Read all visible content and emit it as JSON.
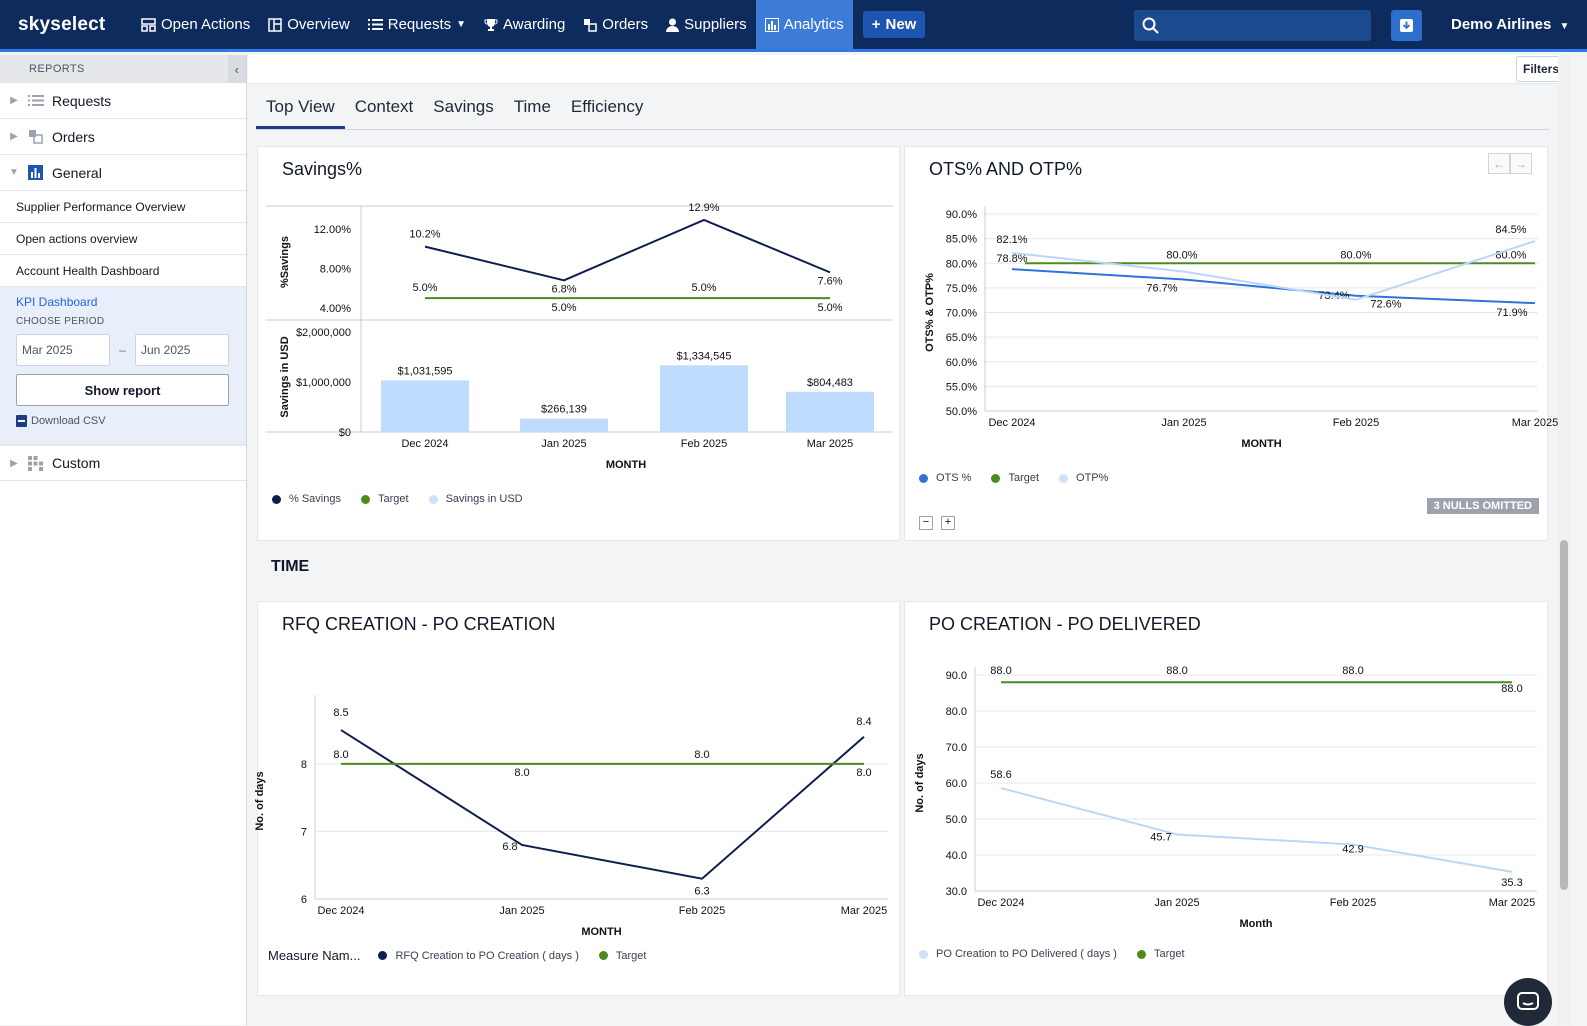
{
  "app": {
    "logo": "skyselect"
  },
  "nav": {
    "items": [
      {
        "label": "Open Actions",
        "icon": "inbox-icon"
      },
      {
        "label": "Overview",
        "icon": "dashboard-icon"
      },
      {
        "label": "Requests",
        "icon": "list-icon"
      },
      {
        "label": "Awarding",
        "icon": "trophy-icon"
      },
      {
        "label": "Orders",
        "icon": "orders-icon"
      },
      {
        "label": "Suppliers",
        "icon": "person-icon"
      },
      {
        "label": "Analytics",
        "icon": "bar-chart-icon"
      }
    ],
    "new_label": "New",
    "search_value": "",
    "account": "Demo Airlines"
  },
  "sidebar": {
    "header": "REPORTS",
    "groups": [
      {
        "label": "Requests"
      },
      {
        "label": "Orders"
      },
      {
        "label": "General"
      },
      {
        "label": "Custom"
      }
    ],
    "links": [
      "Supplier Performance Overview",
      "Open actions overview",
      "Account Health Dashboard"
    ],
    "kpi": {
      "title": "KPI Dashboard",
      "choose_label": "CHOOSE PERIOD",
      "from": "Mar 2025",
      "dash": "–",
      "to": "Jun 2025",
      "show_report": "Show report",
      "download_csv": "Download CSV"
    }
  },
  "main": {
    "filters": "Filters",
    "tabs": [
      "Top View",
      "Context",
      "Savings",
      "Time",
      "Efficiency"
    ],
    "time_heading": "TIME",
    "nulls_badge": "3 NULLS OMITTED",
    "zoom_minus": "−",
    "zoom_plus": "+",
    "measure_label": "Measure Nam..."
  },
  "chart_data": [
    {
      "id": "savings",
      "title": "Savings%",
      "type": "bar",
      "categories": [
        "Dec 2024",
        "Jan 2025",
        "Feb 2025",
        "Mar 2025"
      ],
      "xlabel": "MONTH",
      "top_panel": {
        "ylabel": "%Savings",
        "yticks": [
          "12.00%",
          "8.00%",
          "4.00%"
        ],
        "series": [
          {
            "name": "% Savings",
            "values": [
              10.2,
              6.8,
              12.9,
              7.6
            ],
            "labels": [
              "10.2%",
              "6.8%",
              "12.9%",
              "7.6%"
            ],
            "color": "#0f1f4d"
          },
          {
            "name": "Target",
            "values": [
              5.0,
              5.0,
              5.0,
              5.0
            ],
            "labels": [
              "5.0%",
              "5.0%",
              "5.0%",
              "5.0%"
            ],
            "color": "#4d8b1f"
          }
        ]
      },
      "bottom_panel": {
        "ylabel": "Savings in USD",
        "yticks": [
          "$2,000,000",
          "$1,000,000",
          "$0"
        ],
        "series": [
          {
            "name": "Savings in USD",
            "values": [
              1031595,
              266139,
              1334545,
              804483
            ],
            "labels": [
              "$1,031,595",
              "$266,139",
              "$1,334,545",
              "$804,483"
            ],
            "color": "#bfdbfe"
          }
        ]
      },
      "legend": [
        {
          "label": "% Savings",
          "color": "#0f1f4d"
        },
        {
          "label": "Target",
          "color": "#4d8b1f"
        },
        {
          "label": "Savings in USD",
          "color": "#cfe2fb"
        }
      ]
    },
    {
      "id": "ots",
      "title": "OTS% AND OTP%",
      "type": "line",
      "categories": [
        "Dec 2024",
        "Jan 2025",
        "Feb 2025",
        "Mar 2025"
      ],
      "xlabel": "MONTH",
      "ylabel": "OTS% & OTP%",
      "yticks": [
        "90.0%",
        "85.0%",
        "80.0%",
        "75.0%",
        "70.0%",
        "65.0%",
        "60.0%",
        "55.0%",
        "50.0%"
      ],
      "ylim": [
        50,
        90
      ],
      "series": [
        {
          "name": "OTS %",
          "values": [
            78.8,
            76.7,
            73.4,
            71.9
          ],
          "labels": [
            "78.8%",
            "76.7%",
            "73.4%",
            "71.9%"
          ],
          "color": "#2f73d9"
        },
        {
          "name": "Target",
          "values": [
            80.0,
            80.0,
            80.0,
            80.0
          ],
          "labels": [
            "",
            "80.0%",
            "80.0%",
            "80.0%"
          ],
          "color": "#4d8b1f"
        },
        {
          "name": "OTP%",
          "values": [
            82.1,
            78.3,
            72.6,
            84.5
          ],
          "labels": [
            "82.1%",
            "",
            "72.6%",
            "84.5%"
          ],
          "color": "#bcd7f5"
        }
      ],
      "legend": [
        {
          "label": "OTS %",
          "color": "#2f73d9"
        },
        {
          "label": "Target",
          "color": "#4d8b1f"
        },
        {
          "label": "OTP%",
          "color": "#cfe2fb"
        }
      ]
    },
    {
      "id": "rfq",
      "title": "RFQ CREATION - PO CREATION",
      "type": "line",
      "categories": [
        "Dec 2024",
        "Jan 2025",
        "Feb 2025",
        "Mar 2025"
      ],
      "xlabel": "MONTH",
      "ylabel": "No. of days",
      "yticks": [
        "8",
        "7",
        "6"
      ],
      "ylim": [
        6,
        8.9
      ],
      "series": [
        {
          "name": "RFQ Creation to PO Creation ( days )",
          "values": [
            8.5,
            6.8,
            6.3,
            8.4
          ],
          "labels": [
            "8.5",
            "6.8",
            "6.3",
            "8.4"
          ],
          "color": "#0f1f4d"
        },
        {
          "name": "Target",
          "values": [
            8.0,
            8.0,
            8.0,
            8.0
          ],
          "labels": [
            "8.0",
            "8.0",
            "8.0",
            "8.0"
          ],
          "color": "#4d8b1f"
        }
      ],
      "legend": [
        {
          "label": "RFQ Creation to PO Creation ( days )",
          "color": "#0f1f4d"
        },
        {
          "label": "Target",
          "color": "#4d8b1f"
        }
      ]
    },
    {
      "id": "podel",
      "title": "PO CREATION - PO DELIVERED",
      "type": "line",
      "categories": [
        "Dec 2024",
        "Jan 2025",
        "Feb 2025",
        "Mar 2025"
      ],
      "xlabel": "Month",
      "ylabel": "No. of days",
      "yticks": [
        "90.0",
        "80.0",
        "70.0",
        "60.0",
        "50.0",
        "40.0",
        "30.0"
      ],
      "ylim": [
        30,
        90
      ],
      "series": [
        {
          "name": "PO Creation to PO Delivered ( days )",
          "values": [
            58.6,
            45.7,
            42.9,
            35.3
          ],
          "labels": [
            "58.6",
            "45.7",
            "42.9",
            "35.3"
          ],
          "color": "#bcd7f5"
        },
        {
          "name": "Target",
          "values": [
            88.0,
            88.0,
            88.0,
            88.0
          ],
          "labels": [
            "88.0",
            "88.0",
            "88.0",
            "88.0"
          ],
          "color": "#4d8b1f"
        }
      ],
      "legend": [
        {
          "label": "PO Creation to PO Delivered ( days )",
          "color": "#cfe2fb"
        },
        {
          "label": "Target",
          "color": "#4d8b1f"
        }
      ]
    }
  ]
}
